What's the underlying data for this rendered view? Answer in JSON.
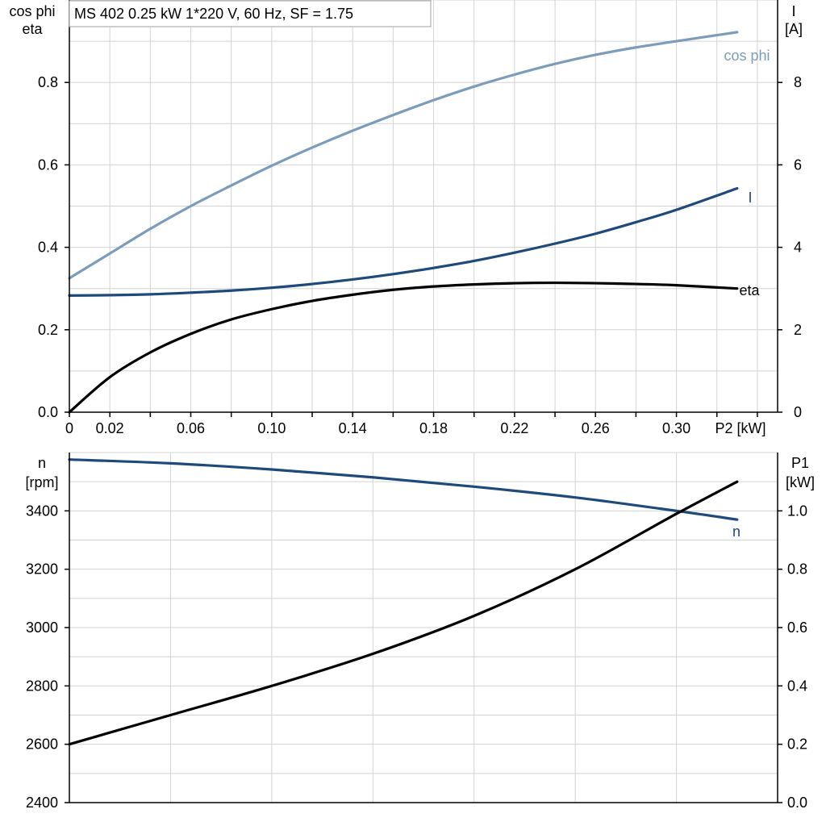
{
  "title_box": "MS 402   0.25 kW   1*220 V, 60 Hz, SF = 1.75",
  "colors": {
    "cos_phi": "#7b9cbb",
    "current": "#1d4a7a",
    "eta": "#000000",
    "speed": "#1d4a7a",
    "p1": "#000000",
    "grid": "#d3d3d3"
  },
  "chart_data": [
    {
      "type": "line",
      "name": "top",
      "title": "MS 402   0.25 kW   1*220 V, 60 Hz, SF = 1.75",
      "xlabel": "P2 [kW]",
      "ylabel_left": [
        "cos phi",
        "eta"
      ],
      "ylabel_right": [
        "I",
        "[A]"
      ],
      "xlim": [
        0,
        0.35
      ],
      "ylim_left": [
        0,
        1.0
      ],
      "ylim_right": [
        0,
        10
      ],
      "x_ticks": [
        {
          "value": 0,
          "label": "0"
        },
        {
          "value": 0.02,
          "label": "0.02"
        },
        {
          "value": 0.06,
          "label": "0.06"
        },
        {
          "value": 0.1,
          "label": "0.10"
        },
        {
          "value": 0.14,
          "label": "0.14"
        },
        {
          "value": 0.18,
          "label": "0.18"
        },
        {
          "value": 0.22,
          "label": "0.22"
        },
        {
          "value": 0.26,
          "label": "0.26"
        },
        {
          "value": 0.3,
          "label": "0.30"
        }
      ],
      "y_left_ticks": [
        {
          "value": 0.0,
          "label": "0.0"
        },
        {
          "value": 0.2,
          "label": "0.2"
        },
        {
          "value": 0.4,
          "label": "0.4"
        },
        {
          "value": 0.6,
          "label": "0.6"
        },
        {
          "value": 0.8,
          "label": "0.8"
        }
      ],
      "y_right_ticks": [
        {
          "value": 0,
          "label": "0"
        },
        {
          "value": 2,
          "label": "2"
        },
        {
          "value": 4,
          "label": "4"
        },
        {
          "value": 6,
          "label": "6"
        },
        {
          "value": 8,
          "label": "8"
        }
      ],
      "grid": true,
      "series": [
        {
          "name": "cos phi",
          "axis": "left",
          "color": "#7b9cbb",
          "x": [
            0,
            0.02,
            0.04,
            0.06,
            0.08,
            0.1,
            0.12,
            0.14,
            0.16,
            0.18,
            0.2,
            0.22,
            0.24,
            0.26,
            0.28,
            0.3,
            0.33
          ],
          "y": [
            0.325,
            0.385,
            0.445,
            0.5,
            0.55,
            0.598,
            0.642,
            0.683,
            0.721,
            0.757,
            0.79,
            0.819,
            0.845,
            0.867,
            0.885,
            0.9,
            0.922
          ]
        },
        {
          "name": "I",
          "axis": "right",
          "color": "#1d4a7a",
          "x": [
            0,
            0.02,
            0.04,
            0.06,
            0.08,
            0.1,
            0.12,
            0.14,
            0.16,
            0.18,
            0.2,
            0.22,
            0.24,
            0.26,
            0.28,
            0.3,
            0.33
          ],
          "y": [
            2.83,
            2.84,
            2.86,
            2.9,
            2.95,
            3.02,
            3.11,
            3.22,
            3.35,
            3.5,
            3.67,
            3.87,
            4.09,
            4.33,
            4.61,
            4.91,
            5.43
          ]
        },
        {
          "name": "eta",
          "axis": "left",
          "color": "#000000",
          "x": [
            0,
            0.02,
            0.04,
            0.06,
            0.08,
            0.1,
            0.12,
            0.14,
            0.16,
            0.18,
            0.2,
            0.22,
            0.24,
            0.26,
            0.28,
            0.3,
            0.33
          ],
          "y": [
            0.0,
            0.085,
            0.145,
            0.19,
            0.225,
            0.25,
            0.27,
            0.285,
            0.297,
            0.305,
            0.31,
            0.313,
            0.314,
            0.313,
            0.311,
            0.308,
            0.3
          ]
        }
      ]
    },
    {
      "type": "line",
      "name": "bottom",
      "ylabel_left": [
        "n",
        "[rpm]"
      ],
      "ylabel_right": [
        "P1",
        "[kW]"
      ],
      "xlim": [
        0,
        0.35
      ],
      "ylim_left": [
        2400,
        3600
      ],
      "ylim_right": [
        0,
        1.2
      ],
      "y_left_ticks": [
        {
          "value": 2400,
          "label": "2400"
        },
        {
          "value": 2600,
          "label": "2600"
        },
        {
          "value": 2800,
          "label": "2800"
        },
        {
          "value": 3000,
          "label": "3000"
        },
        {
          "value": 3200,
          "label": "3200"
        },
        {
          "value": 3400,
          "label": "3400"
        }
      ],
      "y_right_ticks": [
        {
          "value": 0.0,
          "label": "0.0"
        },
        {
          "value": 0.2,
          "label": "0.2"
        },
        {
          "value": 0.4,
          "label": "0.4"
        },
        {
          "value": 0.6,
          "label": "0.6"
        },
        {
          "value": 0.8,
          "label": "0.8"
        },
        {
          "value": 1.0,
          "label": "1.0"
        }
      ],
      "grid": true,
      "series": [
        {
          "name": "n",
          "axis": "left",
          "color": "#1d4a7a",
          "x": [
            0,
            0.05,
            0.1,
            0.15,
            0.2,
            0.25,
            0.3,
            0.33
          ],
          "y": [
            3576,
            3563,
            3542,
            3515,
            3483,
            3446,
            3400,
            3370
          ]
        },
        {
          "name": "",
          "axis": "right",
          "color": "#000000",
          "x": [
            0,
            0.05,
            0.1,
            0.15,
            0.2,
            0.25,
            0.3,
            0.33
          ],
          "y": [
            0.2,
            0.3,
            0.4,
            0.51,
            0.64,
            0.8,
            0.99,
            1.1
          ]
        }
      ]
    }
  ]
}
